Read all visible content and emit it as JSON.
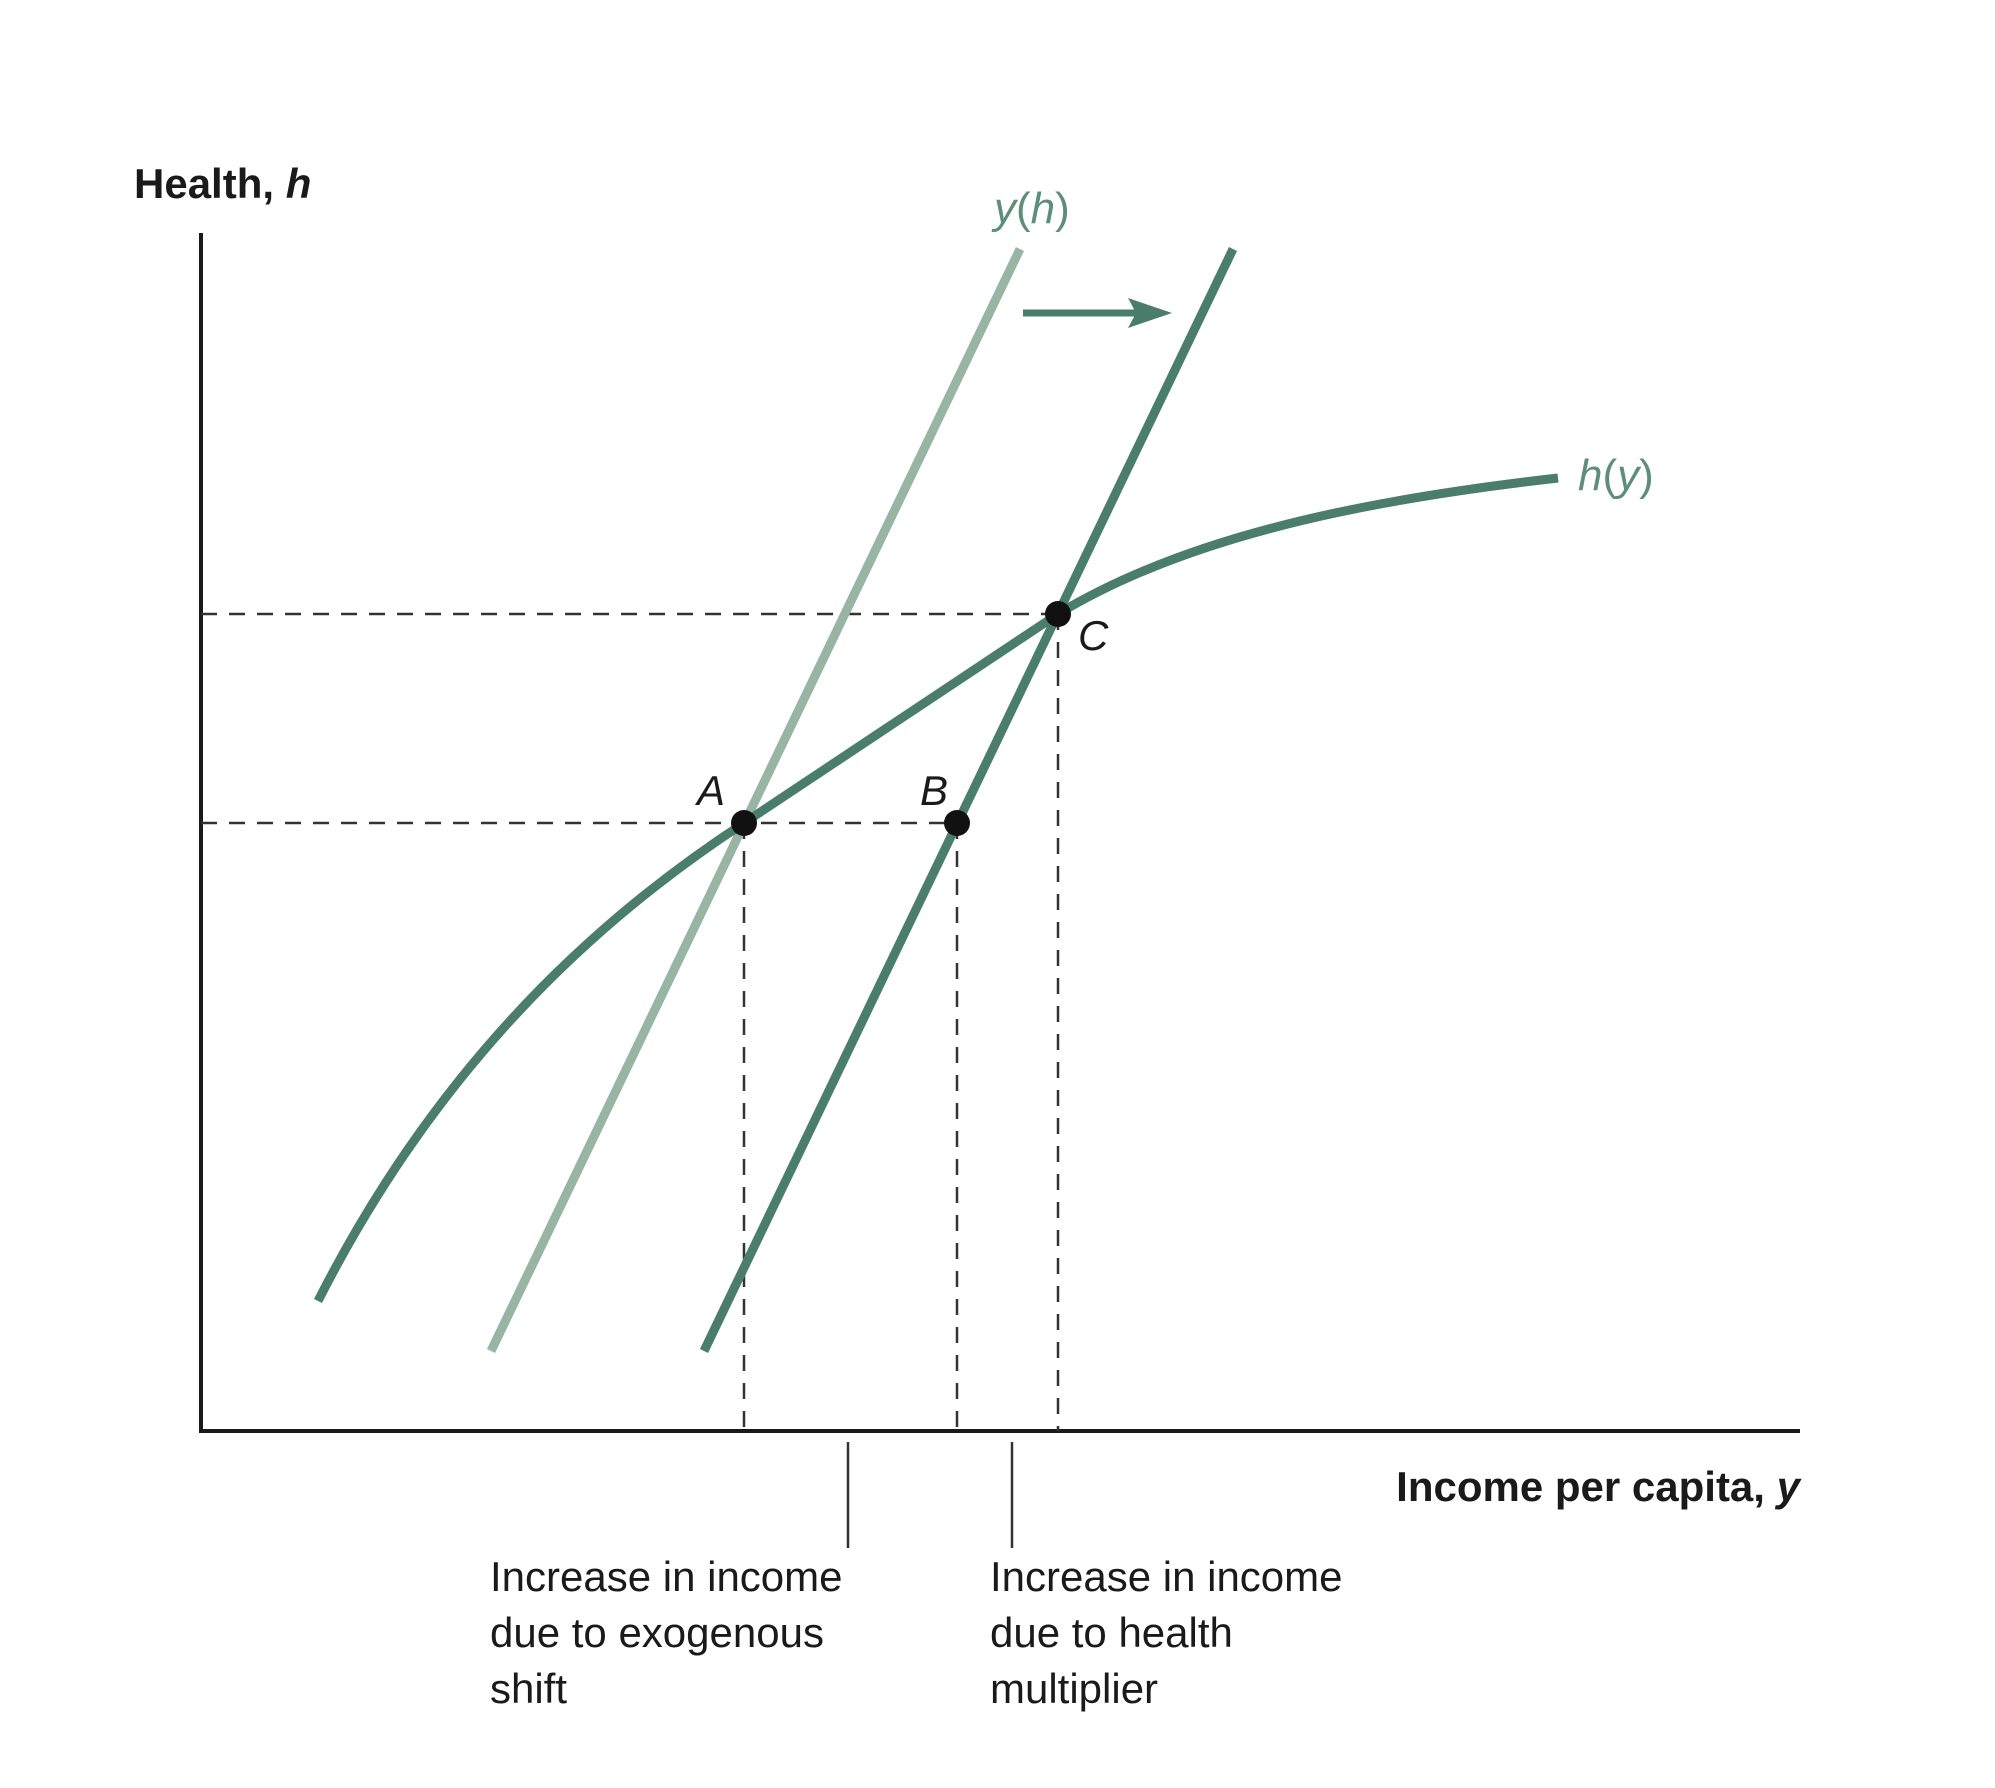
{
  "axes": {
    "y_title_text": "Health, ",
    "y_title_var": "h",
    "x_title_text": "Income per capita, ",
    "x_title_var": "y"
  },
  "curves": {
    "supply_shift": {
      "var": "y",
      "arg": "h",
      "color_before": "#97b5a2",
      "color_after": "#4a7d6c"
    },
    "health": {
      "var": "h",
      "arg": "y",
      "color": "#4a7d6c"
    }
  },
  "points": {
    "a": "A",
    "b": "B",
    "c": "C"
  },
  "annotations": {
    "exogenous": [
      "Increase in income",
      "due to exogenous",
      "shift"
    ],
    "multiplier": [
      "Increase in income",
      "due to health",
      "multiplier"
    ]
  },
  "colors": {
    "axis": "#1a1a1a",
    "dash": "#333333",
    "point": "#111111",
    "arrow": "#4a7d6c"
  }
}
